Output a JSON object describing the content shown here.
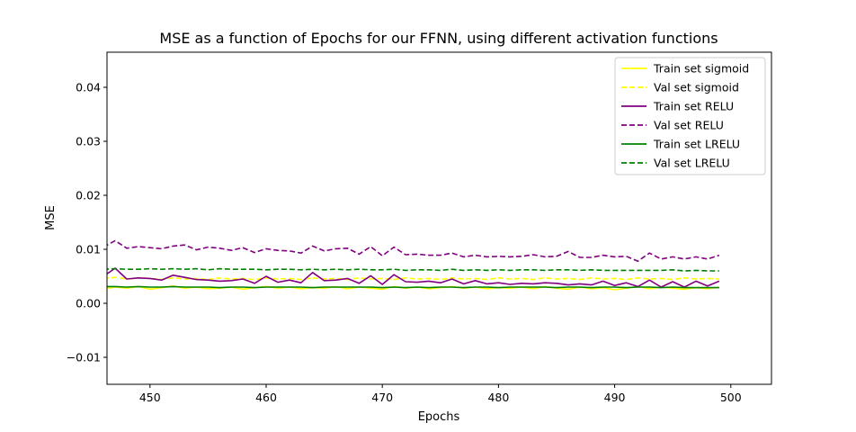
{
  "chart_data": {
    "type": "line",
    "title": "MSE as a function of Epochs for our FFNN, using different activation functions",
    "xlabel": "Epochs",
    "ylabel": "MSE",
    "xlim": [
      446.3,
      503.5
    ],
    "ylim": [
      -0.015,
      0.0465
    ],
    "xticks": [
      450,
      460,
      470,
      480,
      490,
      500
    ],
    "yticks": [
      -0.01,
      0.0,
      0.01,
      0.02,
      0.03,
      0.04
    ],
    "ytick_labels": [
      "−0.01",
      "0.00",
      "0.01",
      "0.02",
      "0.03",
      "0.04"
    ],
    "grid": false,
    "legend_position": "top-right",
    "x": [
      446,
      447,
      448,
      449,
      450,
      451,
      452,
      453,
      454,
      455,
      456,
      457,
      458,
      459,
      460,
      461,
      462,
      463,
      464,
      465,
      466,
      467,
      468,
      469,
      470,
      471,
      472,
      473,
      474,
      475,
      476,
      477,
      478,
      479,
      480,
      481,
      482,
      483,
      484,
      485,
      486,
      487,
      488,
      489,
      490,
      491,
      492,
      493,
      494,
      495,
      496,
      497,
      498,
      499
    ],
    "series": [
      {
        "name": "Train set sigmoid",
        "color": "#ffff00",
        "dash": "solid",
        "values": [
          0.0027,
          0.003,
          0.0028,
          0.0031,
          0.0026,
          0.0029,
          0.0032,
          0.0028,
          0.003,
          0.0027,
          0.0028,
          0.003,
          0.0026,
          0.0029,
          0.0031,
          0.0028,
          0.003,
          0.0027,
          0.0029,
          0.0028,
          0.0031,
          0.0027,
          0.003,
          0.0028,
          0.0026,
          0.0031,
          0.0028,
          0.003,
          0.0027,
          0.0029,
          0.0031,
          0.0028,
          0.003,
          0.0027,
          0.0029,
          0.0028,
          0.003,
          0.0027,
          0.0031,
          0.0028,
          0.0026,
          0.003,
          0.0027,
          0.0029,
          0.0025,
          0.0028,
          0.0031,
          0.0027,
          0.003,
          0.0028,
          0.0026,
          0.0029,
          0.0027,
          0.003
        ]
      },
      {
        "name": "Val set sigmoid",
        "color": "#ffff00",
        "dash": "dashed",
        "values": [
          0.0046,
          0.0048,
          0.0045,
          0.0047,
          0.0046,
          0.0044,
          0.0047,
          0.0045,
          0.0046,
          0.0044,
          0.0047,
          0.0045,
          0.0046,
          0.0044,
          0.0047,
          0.0045,
          0.0046,
          0.0044,
          0.0047,
          0.0045,
          0.0046,
          0.0044,
          0.0047,
          0.0045,
          0.0046,
          0.0044,
          0.0047,
          0.0045,
          0.0046,
          0.0044,
          0.0047,
          0.0045,
          0.0046,
          0.0044,
          0.0047,
          0.0045,
          0.0046,
          0.0044,
          0.0047,
          0.0045,
          0.0046,
          0.0044,
          0.0047,
          0.0045,
          0.0046,
          0.0044,
          0.0047,
          0.0045,
          0.0046,
          0.0044,
          0.0047,
          0.0045,
          0.0046,
          0.0045
        ]
      },
      {
        "name": "Train set RELU",
        "color": "#800080",
        "dash": "solid",
        "values": [
          0.005,
          0.0065,
          0.0045,
          0.0047,
          0.0046,
          0.0043,
          0.0052,
          0.0048,
          0.0044,
          0.0043,
          0.0041,
          0.0042,
          0.0045,
          0.0037,
          0.005,
          0.0039,
          0.0043,
          0.0038,
          0.0057,
          0.0042,
          0.0043,
          0.0046,
          0.0037,
          0.0051,
          0.0035,
          0.0053,
          0.004,
          0.0039,
          0.0041,
          0.0038,
          0.0045,
          0.0036,
          0.0042,
          0.0036,
          0.0038,
          0.0035,
          0.0037,
          0.0036,
          0.0038,
          0.0037,
          0.0034,
          0.0036,
          0.0034,
          0.0041,
          0.0033,
          0.0038,
          0.0031,
          0.0043,
          0.003,
          0.004,
          0.003,
          0.0041,
          0.0032,
          0.0041
        ]
      },
      {
        "name": "Val set RELU",
        "color": "#800080",
        "dash": "dashed",
        "values": [
          0.0104,
          0.0116,
          0.0102,
          0.0105,
          0.0103,
          0.0101,
          0.0106,
          0.0108,
          0.0099,
          0.0104,
          0.0102,
          0.0098,
          0.0103,
          0.0094,
          0.0101,
          0.0098,
          0.0097,
          0.0093,
          0.0106,
          0.0097,
          0.0101,
          0.0102,
          0.0091,
          0.0105,
          0.0088,
          0.0104,
          0.009,
          0.0091,
          0.0089,
          0.0089,
          0.0093,
          0.0086,
          0.0089,
          0.0086,
          0.0087,
          0.0086,
          0.0087,
          0.009,
          0.0086,
          0.0087,
          0.0096,
          0.0085,
          0.0085,
          0.0089,
          0.0086,
          0.0087,
          0.0078,
          0.0093,
          0.0082,
          0.0086,
          0.0082,
          0.0086,
          0.0082,
          0.0089
        ]
      },
      {
        "name": "Train set LRELU",
        "color": "#008000",
        "dash": "solid",
        "values": [
          0.0031,
          0.0031,
          0.003,
          0.0031,
          0.003,
          0.003,
          0.0031,
          0.003,
          0.003,
          0.003,
          0.0029,
          0.003,
          0.003,
          0.0029,
          0.003,
          0.003,
          0.003,
          0.003,
          0.0029,
          0.003,
          0.003,
          0.003,
          0.003,
          0.003,
          0.0029,
          0.003,
          0.0029,
          0.003,
          0.0029,
          0.003,
          0.003,
          0.0029,
          0.003,
          0.003,
          0.0029,
          0.003,
          0.003,
          0.003,
          0.003,
          0.0029,
          0.003,
          0.003,
          0.0029,
          0.003,
          0.003,
          0.0029,
          0.003,
          0.003,
          0.0029,
          0.003,
          0.0029,
          0.0029,
          0.0029,
          0.0029
        ]
      },
      {
        "name": "Val set LRELU",
        "color": "#008000",
        "dash": "dashed",
        "values": [
          0.0063,
          0.0064,
          0.0063,
          0.0063,
          0.0064,
          0.0063,
          0.0064,
          0.0063,
          0.0064,
          0.0062,
          0.0064,
          0.0063,
          0.0063,
          0.0063,
          0.0062,
          0.0063,
          0.0063,
          0.0062,
          0.0063,
          0.0062,
          0.0063,
          0.0062,
          0.0063,
          0.0062,
          0.0062,
          0.0063,
          0.0061,
          0.0062,
          0.0062,
          0.0061,
          0.0063,
          0.0061,
          0.0062,
          0.0061,
          0.0062,
          0.0061,
          0.0062,
          0.0062,
          0.0061,
          0.0062,
          0.0062,
          0.0061,
          0.0062,
          0.0061,
          0.0061,
          0.0061,
          0.0061,
          0.0061,
          0.0061,
          0.0062,
          0.006,
          0.0061,
          0.006,
          0.006
        ]
      }
    ]
  }
}
